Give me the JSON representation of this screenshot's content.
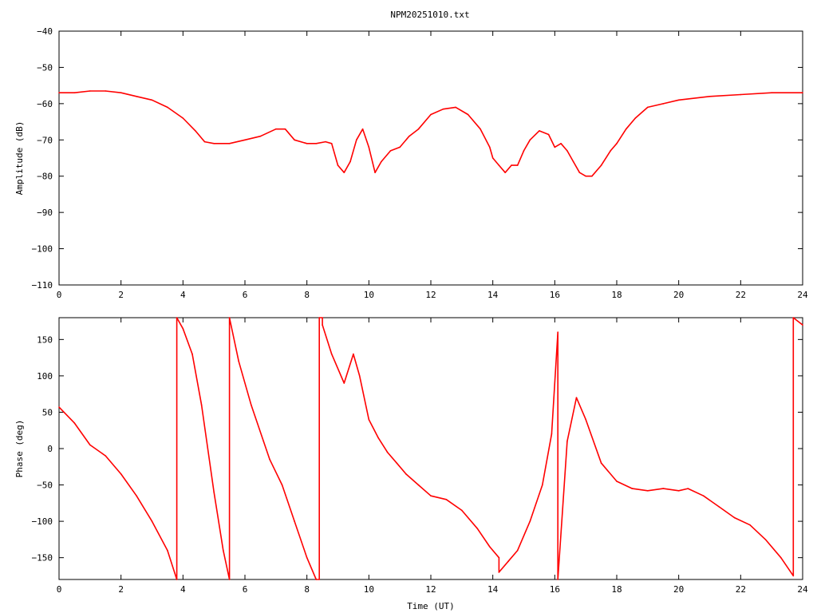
{
  "figure": {
    "title": "NPM20251010.txt"
  },
  "colors": {
    "series": "#ff0000",
    "axis": "#000000",
    "background": "#ffffff"
  },
  "chart_data": [
    {
      "type": "line",
      "title": "NPM20251010.txt",
      "xlabel": "",
      "ylabel": "Amplitude (dB)",
      "xlim": [
        0,
        24
      ],
      "ylim": [
        -110,
        -40
      ],
      "xticks": [
        0,
        2,
        4,
        6,
        8,
        10,
        12,
        14,
        16,
        18,
        20,
        22,
        24
      ],
      "yticks": [
        -110,
        -100,
        -90,
        -80,
        -70,
        -60,
        -50,
        -40
      ],
      "grid": false,
      "series": [
        {
          "x": [
            0,
            0.5,
            1,
            1.5,
            2,
            2.5,
            3,
            3.5,
            4,
            4.4,
            4.7,
            5,
            5.5,
            6,
            6.5,
            7,
            7.3,
            7.6,
            8,
            8.3,
            8.6,
            8.8,
            9,
            9.2,
            9.4,
            9.6,
            9.8,
            10,
            10.2,
            10.4,
            10.7,
            11,
            11.3,
            11.6,
            12,
            12.4,
            12.8,
            13.2,
            13.6,
            13.9,
            14,
            14.2,
            14.4,
            14.6,
            14.8,
            15,
            15.2,
            15.5,
            15.8,
            16,
            16.2,
            16.4,
            16.6,
            16.8,
            17,
            17.2,
            17.5,
            17.8,
            18,
            18.3,
            18.6,
            19,
            19.5,
            20,
            21,
            22,
            23,
            24
          ],
          "y": [
            -57,
            -57,
            -56.5,
            -56.5,
            -57,
            -58,
            -59,
            -61,
            -64,
            -67.5,
            -70.5,
            -71,
            -71,
            -70,
            -69,
            -67,
            -67,
            -70,
            -71,
            -71,
            -70.5,
            -71,
            -77,
            -79,
            -76,
            -70,
            -67,
            -72,
            -79,
            -76,
            -73,
            -72,
            -69,
            -67,
            -63,
            -61.5,
            -61,
            -63,
            -67,
            -72,
            -75,
            -77,
            -79,
            -77,
            -77,
            -73,
            -70,
            -67.5,
            -68.5,
            -72,
            -71,
            -73,
            -76,
            -79,
            -80,
            -80,
            -77,
            -73,
            -71,
            -67,
            -64,
            -61,
            -60,
            -59,
            -58,
            -57.5,
            -57,
            -57
          ]
        }
      ]
    },
    {
      "type": "line",
      "title": "",
      "xlabel": "Time (UT)",
      "ylabel": "Phase (deg)",
      "xlim": [
        0,
        24
      ],
      "ylim": [
        -180,
        180
      ],
      "xticks": [
        0,
        2,
        4,
        6,
        8,
        10,
        12,
        14,
        16,
        18,
        20,
        22,
        24
      ],
      "yticks": [
        -150,
        -100,
        -50,
        0,
        50,
        100,
        150
      ],
      "grid": false,
      "series": [
        {
          "x": [
            0,
            0.5,
            1,
            1.5,
            2,
            2.5,
            3,
            3.5,
            3.8,
            3.8,
            4,
            4.3,
            4.6,
            5,
            5.3,
            5.5,
            5.5,
            5.8,
            6.2,
            6.6,
            6.8,
            7.2,
            7.6,
            8,
            8.3,
            8.4,
            8.4,
            8.5,
            8.5,
            8.8,
            9.2,
            9.5,
            9.7,
            10,
            10.3,
            10.6,
            10.9,
            11.2,
            11.6,
            12,
            12.5,
            13,
            13.5,
            13.9,
            14.2,
            14.2,
            14.5,
            14.8,
            15.2,
            15.6,
            15.9,
            16.1,
            16.1,
            16.4,
            16.7,
            17,
            17.5,
            18,
            18.5,
            19,
            19.5,
            20,
            20.3,
            20.8,
            21.3,
            21.8,
            22.3,
            22.8,
            23.3,
            23.7,
            23.7,
            24
          ],
          "y": [
            57,
            35,
            5,
            -10,
            -35,
            -65,
            -100,
            -140,
            -180,
            180,
            165,
            130,
            60,
            -60,
            -140,
            -180,
            180,
            120,
            60,
            10,
            -15,
            -50,
            -100,
            -150,
            -180,
            -180,
            180,
            180,
            170,
            130,
            90,
            130,
            100,
            40,
            15,
            -5,
            -20,
            -35,
            -50,
            -65,
            -70,
            -85,
            -110,
            -135,
            -150,
            -170,
            -155,
            -140,
            -100,
            -50,
            20,
            160,
            -180,
            10,
            70,
            40,
            -20,
            -45,
            -55,
            -58,
            -55,
            -58,
            -55,
            -65,
            -80,
            -95,
            -105,
            -125,
            -150,
            -175,
            180,
            170
          ]
        }
      ]
    }
  ]
}
